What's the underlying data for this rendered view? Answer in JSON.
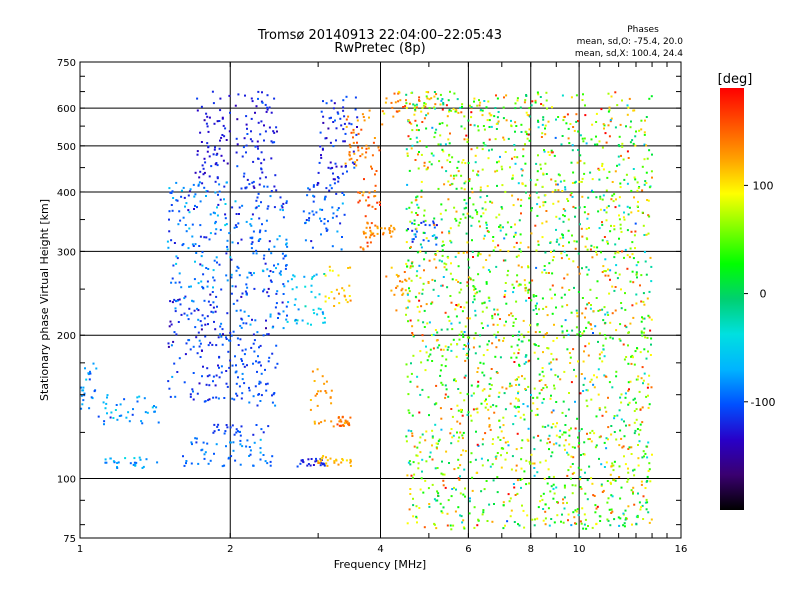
{
  "chart_data": {
    "type": "scatter",
    "title": "Tromsø 20140913 22:04:00–22:05:43",
    "subtitle": "RwPretec (8p)",
    "xlabel": "Frequency [MHz]",
    "ylabel": "Stationary phase Virtual Height [km]",
    "x_scale": "log",
    "y_scale": "log",
    "xlim": [
      1,
      16
    ],
    "ylim": [
      75,
      750
    ],
    "x_ticks": [
      1,
      2,
      4,
      6,
      8,
      10,
      16
    ],
    "y_ticks": [
      75,
      100,
      200,
      300,
      400,
      500,
      600,
      750
    ],
    "grid": true,
    "stats": {
      "heading": "Phases",
      "line1": "mean, sd,O: -75.4, 20.0",
      "line2": "mean, sd,X: 100.4, 24.4"
    },
    "colorbar": {
      "label": "[deg]",
      "min": -200,
      "max": 190,
      "ticks": [
        100,
        0,
        -100
      ],
      "colors": [
        "#000000",
        "#3a0070",
        "#2800c8",
        "#0050ff",
        "#00b4ff",
        "#00e0e0",
        "#00d070",
        "#00ff00",
        "#80ff00",
        "#ffff00",
        "#ffa000",
        "#ff5000",
        "#ff0000"
      ]
    },
    "series": [
      {
        "comment_free": true,
        "clusters": [
          [
            1.0,
            1.08,
            140,
            175,
            -85,
            30
          ],
          [
            1.05,
            1.45,
            105,
            111,
            -80,
            30
          ],
          [
            1.08,
            1.45,
            130,
            150,
            -75,
            35
          ],
          [
            1.5,
            2.0,
            145,
            250,
            -110,
            35
          ],
          [
            1.5,
            2.0,
            250,
            420,
            -95,
            40
          ],
          [
            1.7,
            2.0,
            420,
            650,
            -125,
            20
          ],
          [
            1.6,
            2.45,
            106,
            112,
            -95,
            15
          ],
          [
            1.6,
            2.4,
            112,
            122,
            -85,
            25
          ],
          [
            1.85,
            2.4,
            123,
            130,
            -110,
            15
          ],
          [
            2.0,
            2.5,
            140,
            200,
            -105,
            20
          ],
          [
            2.0,
            2.6,
            200,
            400,
            -100,
            40
          ],
          [
            2.05,
            2.5,
            400,
            650,
            -120,
            20
          ],
          [
            2.7,
            3.1,
            106,
            110,
            -120,
            15
          ],
          [
            3.0,
            3.5,
            106,
            112,
            120,
            25
          ],
          [
            2.9,
            3.2,
            130,
            170,
            130,
            20
          ],
          [
            3.2,
            3.5,
            128,
            135,
            140,
            20
          ],
          [
            2.6,
            3.1,
            210,
            270,
            -55,
            30
          ],
          [
            3.1,
            3.5,
            230,
            280,
            110,
            30
          ],
          [
            2.8,
            3.4,
            300,
            420,
            -100,
            30
          ],
          [
            3.0,
            3.6,
            420,
            640,
            -115,
            25
          ],
          [
            3.4,
            3.9,
            450,
            600,
            140,
            30
          ],
          [
            3.6,
            4.0,
            300,
            500,
            150,
            30
          ],
          [
            3.7,
            4.3,
            320,
            340,
            130,
            20
          ],
          [
            4.1,
            4.6,
            225,
            280,
            130,
            30
          ],
          [
            4.0,
            5.2,
            550,
            650,
            130,
            50
          ],
          [
            4.5,
            5.2,
            310,
            350,
            -110,
            30
          ],
          [
            4.5,
            14.0,
            78,
            650,
            60,
            120
          ]
        ]
      }
    ]
  }
}
